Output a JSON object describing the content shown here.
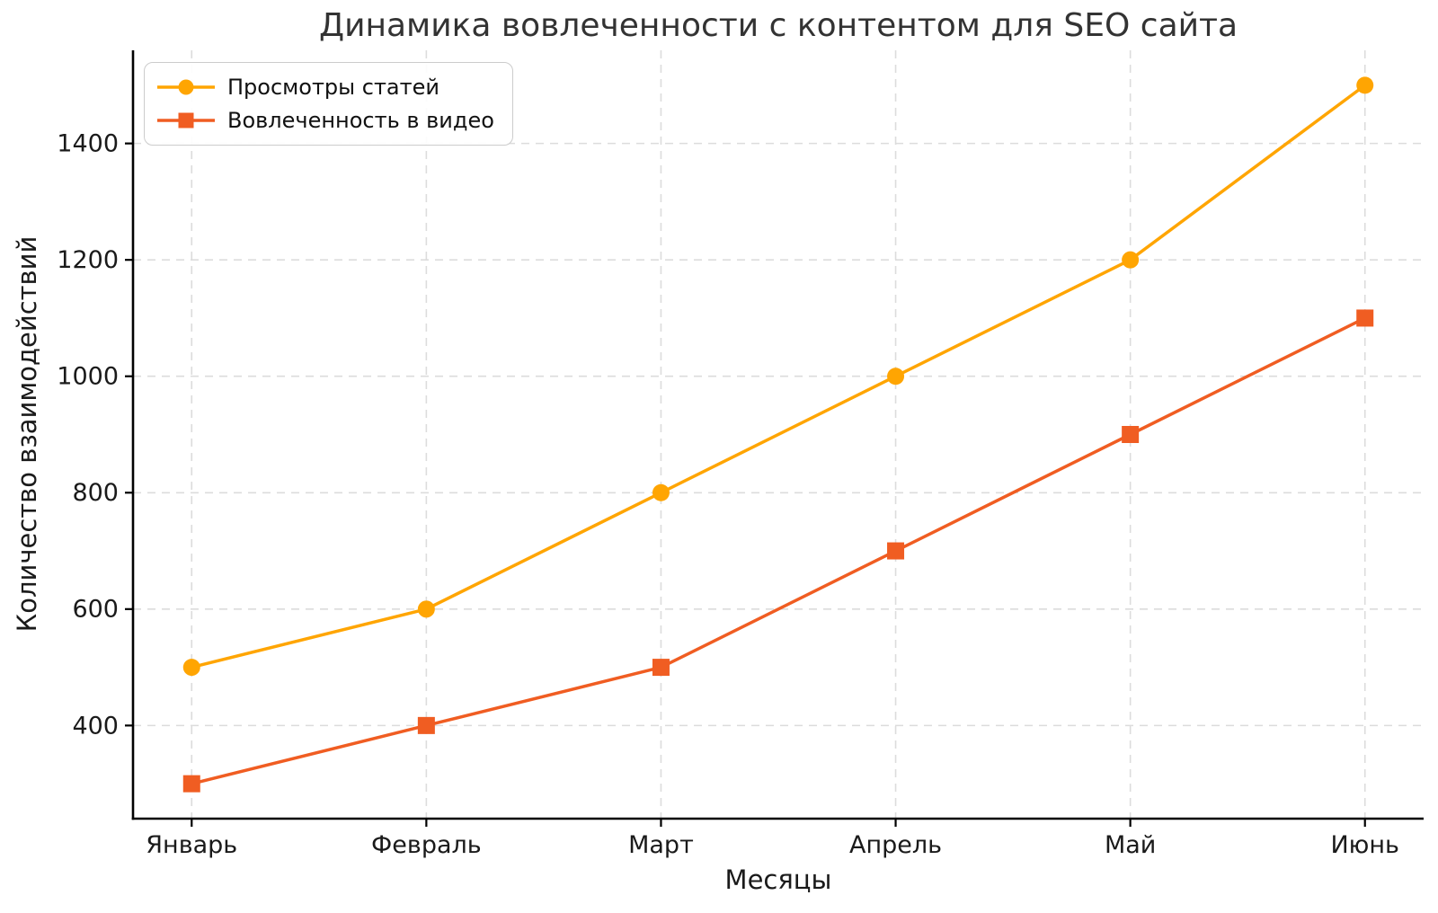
{
  "chart_data": {
    "type": "line",
    "title": "Динамика вовлеченности с контентом для SEO сайта",
    "xlabel": "Месяцы",
    "ylabel": "Количество взаимодействий",
    "categories": [
      "Январь",
      "Февраль",
      "Март",
      "Апрель",
      "Май",
      "Июнь"
    ],
    "series": [
      {
        "name": "Просмотры статей",
        "values": [
          500,
          600,
          800,
          1000,
          1200,
          1500
        ],
        "color": "#FFA502",
        "marker": "circle"
      },
      {
        "name": "Вовлеченность в видео",
        "values": [
          300,
          400,
          500,
          700,
          900,
          1100
        ],
        "color": "#F05D22",
        "marker": "square"
      }
    ],
    "yticks": [
      400,
      600,
      800,
      1000,
      1200,
      1400
    ],
    "ylim": [
      240,
      1560
    ],
    "grid": true,
    "grid_color": "#dcdcdc",
    "spine_color": "#000000",
    "text_color": "#1a1a1a",
    "legend_position": "upper-left"
  }
}
